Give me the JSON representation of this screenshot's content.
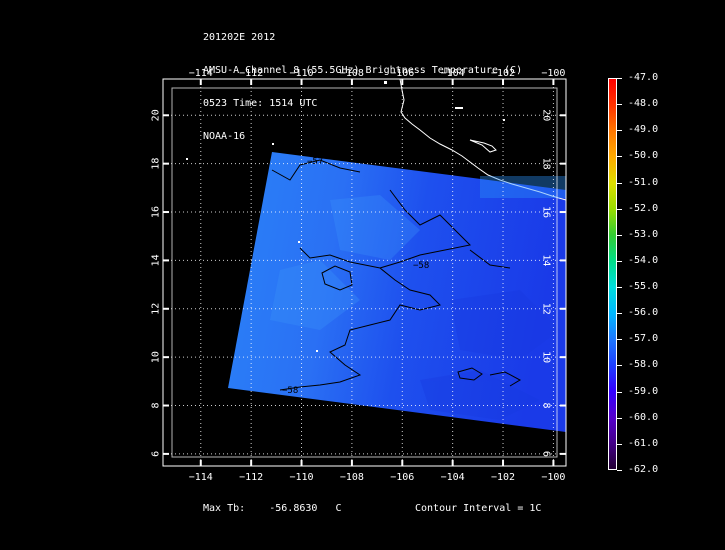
{
  "header": {
    "line1": "201202E 2012",
    "line2": "AMSU-A Channel 8 (55.5GHz) Brightness Temperature (C)",
    "line3": "0523 Time: 1514 UTC",
    "line4": "NOAA-16"
  },
  "map": {
    "lon_ticks": [
      "−114",
      "−112",
      "−110",
      "−108",
      "−106",
      "−104",
      "−102",
      "−100"
    ],
    "lat_ticks": [
      "6",
      "8",
      "10",
      "12",
      "14",
      "16",
      "18",
      "20"
    ],
    "lon_range": [
      -115.5,
      -99.5
    ],
    "lat_range": [
      5.5,
      21.5
    ],
    "coastline_color": "#ffffff",
    "contour_labels": [
      "−57",
      "−58",
      "−58"
    ],
    "colors": {
      "cold": "#1a3cf2",
      "warm": "#2a78f6",
      "swath_mid": "#2556f0"
    }
  },
  "footer": {
    "max_label": "Max Tb:",
    "max_value": "-56.8630",
    "max_unit": "C",
    "contour_interval": "Contour Interval = 1C"
  },
  "colorbar": {
    "labels": [
      "-47.0",
      "-48.0",
      "-49.0",
      "-50.0",
      "-51.0",
      "-52.0",
      "-53.0",
      "-54.0",
      "-55.0",
      "-56.0",
      "-57.0",
      "-58.0",
      "-59.0",
      "-60.0",
      "-61.0",
      "-62.0"
    ],
    "colors": [
      "#ff0000",
      "#ff3300",
      "#ff7700",
      "#ffaa00",
      "#dddd00",
      "#99dd00",
      "#33cc33",
      "#00dd88",
      "#00dddd",
      "#00b8ff",
      "#1e78ff",
      "#1e40ff",
      "#3300ff",
      "#5500cc",
      "#440088",
      "#220033"
    ]
  }
}
